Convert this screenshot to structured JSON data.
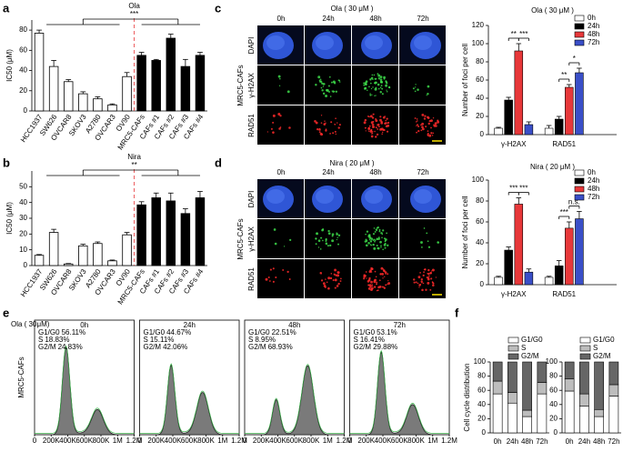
{
  "chart_data": [
    {
      "type": "bar",
      "panel_label": "a",
      "title": "Ola",
      "y_label": "IC50 (μM)",
      "categories": [
        "HCC1937",
        "SW626",
        "OVCAR8",
        "SKOV3",
        "A2780",
        "OVCAR3",
        "OV90",
        "MRC5-CAFs",
        "CAFs #1",
        "CAFs #2",
        "CAFs #3",
        "CAFs #4"
      ],
      "values": [
        77,
        44,
        29,
        17,
        12,
        6,
        34,
        55,
        50,
        72,
        44,
        55
      ],
      "errors": [
        3,
        6,
        2,
        2,
        2,
        1,
        4,
        3,
        1,
        4,
        7,
        3
      ],
      "colors": [
        "#ffffff",
        "#ffffff",
        "#ffffff",
        "#ffffff",
        "#ffffff",
        "#ffffff",
        "#ffffff",
        "#000000",
        "#000000",
        "#000000",
        "#000000",
        "#000000"
      ],
      "ylim": [
        0,
        90
      ],
      "yticks": [
        0,
        20,
        40,
        60,
        80
      ],
      "annotations": [
        "***"
      ]
    },
    {
      "type": "bar",
      "panel_label": "b",
      "title": "Nira",
      "y_label": "IC50 (μM)",
      "categories": [
        "HCC1937",
        "SW626",
        "OVCAR8",
        "SKOV3",
        "A2780",
        "OVCAR3",
        "OV90",
        "MRC5-CAFs",
        "CAFs #1",
        "CAFs #2",
        "CAFs #3",
        "CAFs #4"
      ],
      "values": [
        6.5,
        21,
        1,
        12.5,
        14,
        3,
        19.5,
        38.5,
        43,
        41,
        33,
        43
      ],
      "errors": [
        0.5,
        2,
        0.3,
        1,
        1,
        0.5,
        1.5,
        2,
        3,
        5,
        3,
        4
      ],
      "colors": [
        "#ffffff",
        "#ffffff",
        "#ffffff",
        "#ffffff",
        "#ffffff",
        "#ffffff",
        "#ffffff",
        "#000000",
        "#000000",
        "#000000",
        "#000000",
        "#000000"
      ],
      "ylim": [
        0,
        60
      ],
      "yticks": [
        0,
        10,
        20,
        30,
        40,
        50
      ],
      "annotations": [
        "**"
      ]
    },
    {
      "type": "grouped-bar",
      "title": "Ola ( 30 μM )",
      "y_label": "Number of foci per cell",
      "categories": [
        "γ-H2AX",
        "RAD51"
      ],
      "series": [
        {
          "name": "0h",
          "color": "#ffffff",
          "values": [
            7,
            7
          ],
          "errors": [
            1,
            3
          ]
        },
        {
          "name": "24h",
          "color": "#000000",
          "values": [
            38,
            17
          ],
          "errors": [
            3,
            3
          ]
        },
        {
          "name": "48h",
          "color": "#e8383a",
          "values": [
            92,
            52
          ],
          "errors": [
            8,
            3
          ]
        },
        {
          "name": "72h",
          "color": "#3a4fc8",
          "values": [
            11,
            68
          ],
          "errors": [
            3,
            5
          ]
        }
      ],
      "ylim": [
        0,
        120
      ],
      "yticks": [
        0,
        20,
        40,
        60,
        80,
        100,
        120
      ],
      "annotations": [
        "**",
        "***",
        "**",
        "*"
      ]
    },
    {
      "type": "grouped-bar",
      "title": "Nira ( 20 μM )",
      "y_label": "Number of foci per cell",
      "categories": [
        "γ-H2AX",
        "RAD51"
      ],
      "series": [
        {
          "name": "0h",
          "color": "#ffffff",
          "values": [
            7,
            7
          ],
          "errors": [
            1,
            1
          ]
        },
        {
          "name": "24h",
          "color": "#000000",
          "values": [
            33,
            18
          ],
          "errors": [
            3,
            5
          ]
        },
        {
          "name": "48h",
          "color": "#e8383a",
          "values": [
            77,
            54
          ],
          "errors": [
            6,
            6
          ]
        },
        {
          "name": "72h",
          "color": "#3a4fc8",
          "values": [
            12,
            63
          ],
          "errors": [
            3,
            7
          ]
        }
      ],
      "ylim": [
        0,
        100
      ],
      "yticks": [
        0,
        20,
        40,
        60,
        80,
        100
      ],
      "annotations": [
        "***",
        "***",
        "***",
        "n.s."
      ]
    },
    {
      "type": "flow-histogram",
      "panel_label": "e",
      "title": "Ola ( 30μM)",
      "y_label": "MRC5-CAFs",
      "phases": [
        "G1/G0",
        "S",
        "G2/M"
      ],
      "xlim": [
        0,
        1200000
      ],
      "xticks": [
        0,
        {
          "value": 200000,
          "label": "200K"
        },
        {
          "value": 400000,
          "label": "400K"
        },
        {
          "value": 600000,
          "label": "600K"
        },
        {
          "value": 800000,
          "label": "800K"
        },
        {
          "value": 1000000,
          "label": "1M"
        },
        {
          "value": 1200000,
          "label": "1.2M"
        }
      ],
      "series": [
        {
          "name": "0h",
          "values": [
            56.11,
            18.83,
            24.83
          ],
          "value_labels": [
            "56.11%",
            "18.83%",
            "24.83%"
          ]
        },
        {
          "name": "24h",
          "values": [
            44.67,
            15.11,
            42.06
          ],
          "value_labels": [
            "44.67%",
            "15.11%",
            "42.06%"
          ]
        },
        {
          "name": "48h",
          "values": [
            22.51,
            8.95,
            68.93
          ],
          "value_labels": [
            "22.51%",
            "8.95%",
            "68.93%"
          ]
        },
        {
          "name": "72h",
          "values": [
            53.1,
            16.41,
            29.88
          ],
          "value_labels": [
            "53.1%",
            "16.41%",
            "29.88%"
          ]
        }
      ]
    },
    {
      "type": "stacked-bar",
      "panel_label": "f",
      "y_label": "Cell cycle distribution",
      "categories": [
        "0h",
        "24h",
        "48h",
        "72h"
      ],
      "series": [
        {
          "name": "G1/G0",
          "color": "#ffffff",
          "values": [
            55,
            42,
            23,
            55
          ]
        },
        {
          "name": "S",
          "color": "#bdbdbd",
          "values": [
            18,
            15,
            9,
            16
          ]
        },
        {
          "name": "G2/M",
          "color": "#666666",
          "values": [
            27,
            43,
            68,
            29
          ]
        }
      ],
      "ylim": [
        0,
        100
      ],
      "yticks": [
        0,
        20,
        40,
        60,
        80,
        100
      ]
    },
    {
      "type": "stacked-bar",
      "categories": [
        "0h",
        "24h",
        "48h",
        "72h"
      ],
      "series": [
        {
          "name": "G1/G0",
          "color": "#ffffff",
          "values": [
            59,
            38,
            23,
            52
          ]
        },
        {
          "name": "S",
          "color": "#bdbdbd",
          "values": [
            17,
            17,
            10,
            16
          ]
        },
        {
          "name": "G2/M",
          "color": "#666666",
          "values": [
            24,
            45,
            67,
            32
          ]
        }
      ],
      "ylim": [
        0,
        100
      ],
      "yticks": [
        0,
        20,
        40,
        60,
        80,
        100
      ]
    }
  ],
  "image_panels": [
    {
      "panel_label": "c",
      "title": "Ola ( 30 μM )",
      "columns": [
        "0h",
        "24h",
        "48h",
        "72h"
      ],
      "rows": [
        "DAPI",
        "γ-H2AX",
        "RAD51"
      ],
      "side_label": "MRC5-CAFs"
    },
    {
      "panel_label": "d",
      "title": "Nira ( 20 μM )",
      "columns": [
        "0h",
        "24h",
        "48h",
        "72h"
      ],
      "rows": [
        "DAPI",
        "γ-H2AX",
        "RAD51"
      ],
      "side_label": "MRC5-CAFs"
    }
  ]
}
